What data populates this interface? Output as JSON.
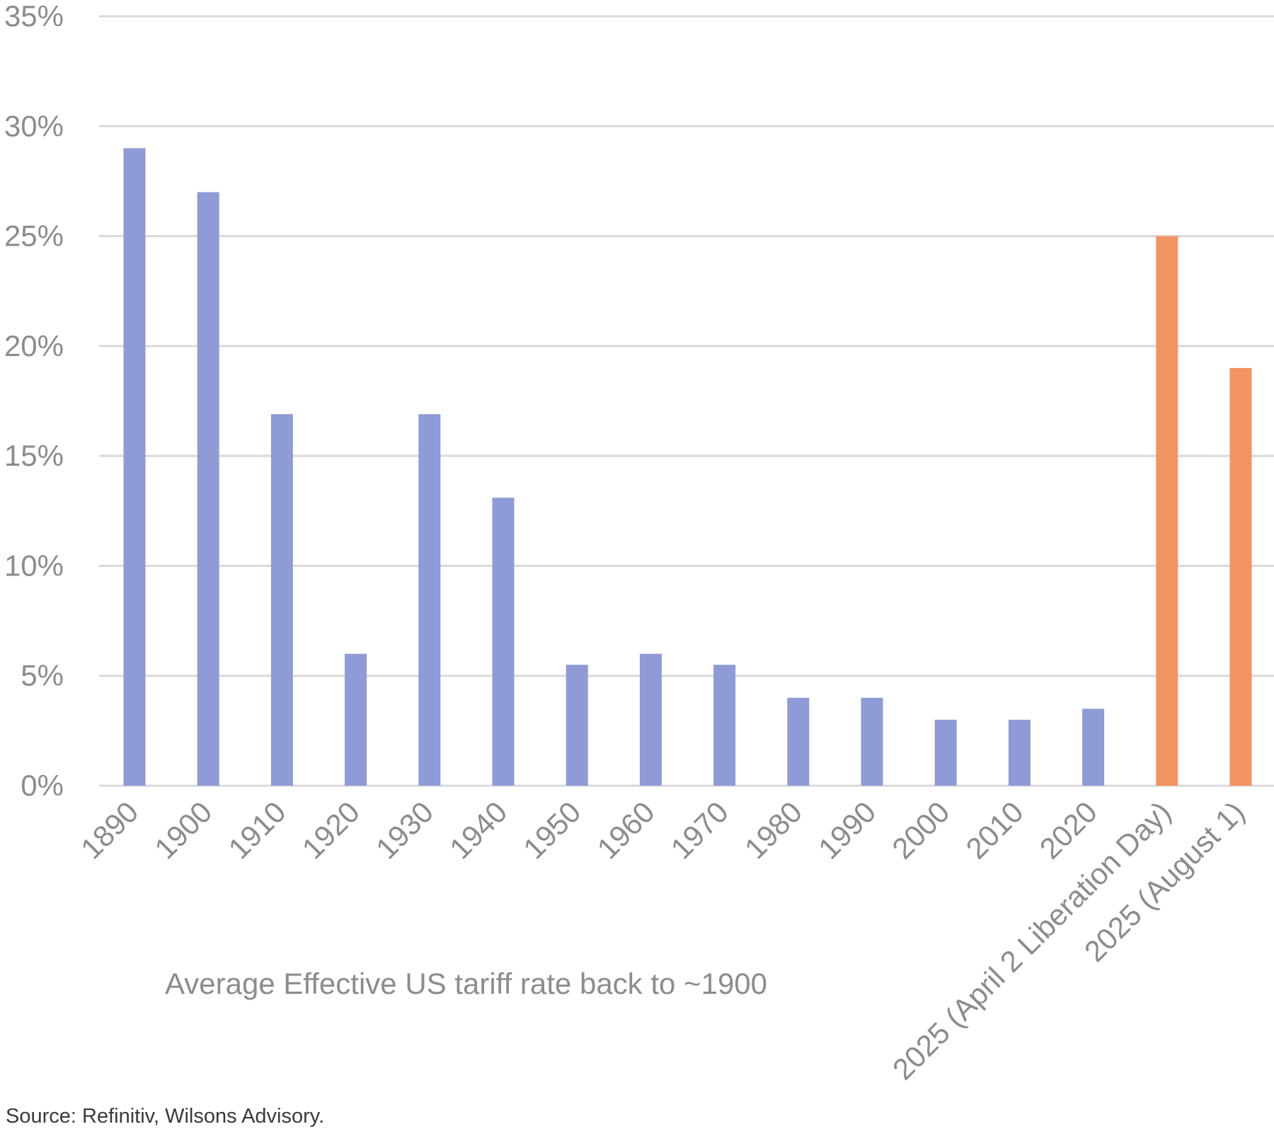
{
  "chart_data": {
    "type": "bar",
    "title": "Average Effective US tariff rate back to ~1900",
    "source": "Source: Refinitiv, Wilsons Advisory.",
    "xlabel": "",
    "ylabel": "",
    "ylim": [
      0,
      35
    ],
    "yticks": [
      "0%",
      "5%",
      "10%",
      "15%",
      "20%",
      "25%",
      "30%",
      "35%"
    ],
    "grid": true,
    "categories": [
      "1890",
      "1900",
      "1910",
      "1920",
      "1930",
      "1940",
      "1950",
      "1960",
      "1970",
      "1980",
      "1990",
      "2000",
      "2010",
      "2020",
      "2025 (April 2 Liberation Day)",
      "2025 (August 1)"
    ],
    "values": [
      29,
      27,
      16.9,
      6,
      16.9,
      13.1,
      5.5,
      6,
      5.5,
      4,
      4,
      3,
      3,
      3.5,
      25,
      19
    ],
    "colors": [
      "#8e9bd6",
      "#8e9bd6",
      "#8e9bd6",
      "#8e9bd6",
      "#8e9bd6",
      "#8e9bd6",
      "#8e9bd6",
      "#8e9bd6",
      "#8e9bd6",
      "#8e9bd6",
      "#8e9bd6",
      "#8e9bd6",
      "#8e9bd6",
      "#8e9bd6",
      "#f29461",
      "#f29461"
    ]
  }
}
